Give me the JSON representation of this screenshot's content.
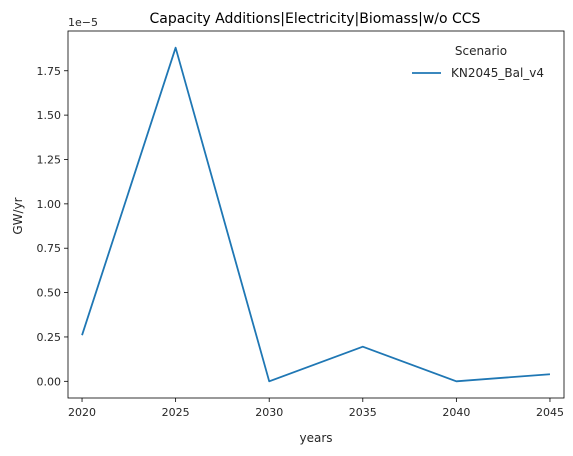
{
  "chart_data": {
    "type": "line",
    "title": "Capacity Additions|Electricity|Biomass|w/o CCS",
    "xlabel": "years",
    "ylabel": "GW/yr",
    "scale_label": "1e−5",
    "x": [
      2020,
      2025,
      2030,
      2035,
      2040,
      2045
    ],
    "x_ticks": [
      "2020",
      "2025",
      "2030",
      "2035",
      "2040",
      "2045"
    ],
    "y_ticks": [
      "0.00",
      "0.25",
      "0.50",
      "0.75",
      "1.00",
      "1.25",
      "1.50",
      "1.75"
    ],
    "xlim": [
      2019.25,
      2045.75
    ],
    "ylim": [
      -0.094,
      1.974
    ],
    "legend": {
      "title": "Scenario",
      "placement": "top-right"
    },
    "series": [
      {
        "name": "KN2045_Bal_v4",
        "color": "#1f77b4",
        "values": [
          0.26,
          1.88,
          0.0,
          0.195,
          0.0,
          0.04
        ]
      }
    ]
  }
}
